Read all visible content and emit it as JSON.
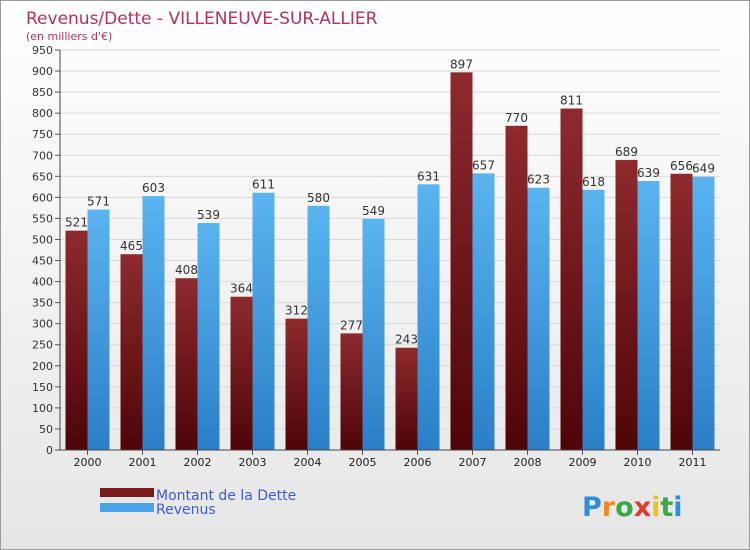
{
  "chart_data": {
    "type": "bar",
    "title": "Revenus/Dette - VILLENEUVE-SUR-ALLIER",
    "subtitle": "(en milliers d'€)",
    "categories": [
      "2000",
      "2001",
      "2002",
      "2003",
      "2004",
      "2005",
      "2006",
      "2007",
      "2008",
      "2009",
      "2010",
      "2011"
    ],
    "series": [
      {
        "name": "Montant de la Dette",
        "values": [
          521,
          465,
          408,
          364,
          312,
          277,
          243,
          897,
          770,
          811,
          689,
          656
        ],
        "color": "#7a1a1e"
      },
      {
        "name": "Revenus",
        "values": [
          571,
          603,
          539,
          611,
          580,
          549,
          631,
          657,
          623,
          618,
          639,
          649
        ],
        "color": "#4aa3e6"
      }
    ],
    "ylim": [
      0,
      950
    ],
    "ytick_step": 50,
    "grid": true,
    "legend_position": "bottom-left",
    "xlabel": "",
    "ylabel": ""
  },
  "branding": {
    "logo_letters": [
      "P",
      "r",
      "o",
      "x",
      "i",
      "t",
      "i"
    ],
    "logo_colors": [
      "#2d8fd8",
      "#f08a1c",
      "#3aa845",
      "#e23a2a",
      "#f2c21c",
      "#3aa845",
      "#2d8fd8"
    ]
  }
}
